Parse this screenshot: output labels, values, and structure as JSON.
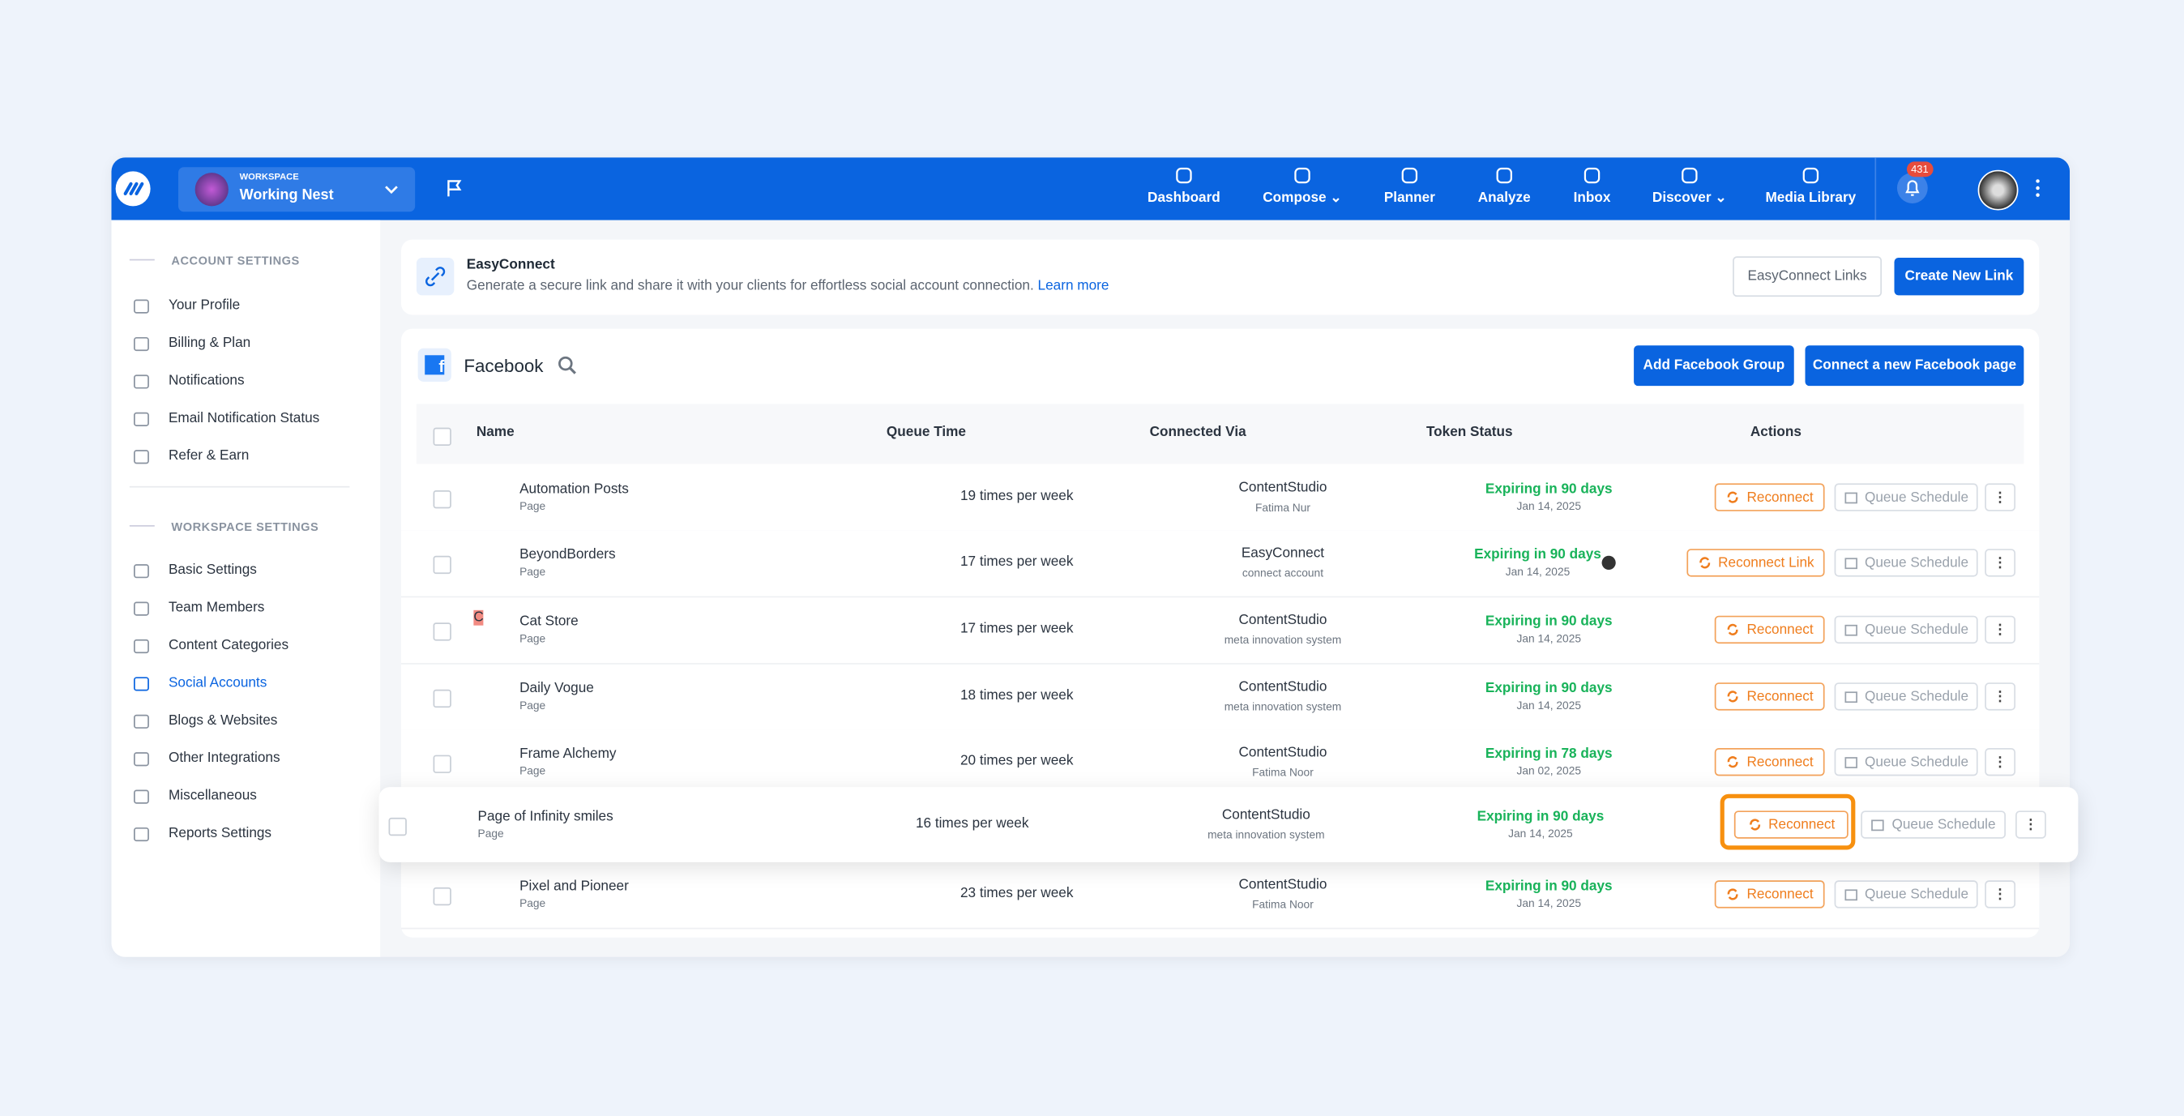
{
  "topbar": {
    "workspace_label": "WORKSPACE",
    "workspace_name": "Working Nest",
    "nav": [
      "Dashboard",
      "Compose",
      "Planner",
      "Analyze",
      "Inbox",
      "Discover",
      "Media Library"
    ],
    "notification_count": "431"
  },
  "sidebar": {
    "account_heading": "ACCOUNT SETTINGS",
    "account_items": [
      "Your Profile",
      "Billing & Plan",
      "Notifications",
      "Email Notification Status",
      "Refer & Earn"
    ],
    "workspace_heading": "WORKSPACE SETTINGS",
    "workspace_items": [
      "Basic Settings",
      "Team Members",
      "Content Categories",
      "Social Accounts",
      "Blogs & Websites",
      "Other Integrations",
      "Miscellaneous",
      "Reports Settings"
    ]
  },
  "easyconnect": {
    "title": "EasyConnect",
    "description": "Generate a secure link and share it with your clients for effortless social account connection.",
    "link": "Learn more",
    "buttons": [
      "EasyConnect Links",
      "Create New Link"
    ]
  },
  "facebook": {
    "title": "Facebook",
    "buttons": [
      "Add Facebook Group",
      "Connect a new Facebook page"
    ],
    "columns": [
      "Name",
      "Queue Time",
      "Connected Via",
      "Token Status",
      "Actions"
    ],
    "rows": [
      {
        "initial": null,
        "name": "Automation Posts",
        "type": "Page",
        "queue": "19 times per week",
        "via": "ContentStudio",
        "via_detail": "Fatima Nur",
        "status": "Expiring in 90 days",
        "date": "Jan 14, 2025",
        "actions": [
          "Reconnect",
          "Queue Schedule"
        ]
      },
      {
        "initial": null,
        "name": "BeyondBorders",
        "type": "Page",
        "queue": "17 times per week",
        "via": "EasyConnect",
        "via_detail": "connect account",
        "status": "Expiring in 90 days",
        "date": "Jan 14, 2025",
        "actions": [
          "Reconnect Link",
          "Queue Schedule"
        ]
      },
      {
        "initial": "C",
        "name": "Cat Store",
        "type": "Page",
        "queue": "17 times per week",
        "via": "ContentStudio",
        "via_detail": "meta innovation system",
        "status": "Expiring in 90 days",
        "date": "Jan 14, 2025",
        "actions": [
          "Reconnect",
          "Queue Schedule"
        ]
      },
      {
        "initial": null,
        "name": "Daily Vogue",
        "type": "Page",
        "queue": "18 times per week",
        "via": "ContentStudio",
        "via_detail": "meta innovation system",
        "status": "Expiring in 90 days",
        "date": "Jan 14, 2025",
        "actions": [
          "Reconnect",
          "Queue Schedule"
        ]
      },
      {
        "initial": null,
        "name": "Frame Alchemy",
        "type": "Page",
        "queue": "20 times per week",
        "via": "ContentStudio",
        "via_detail": "Fatima Noor",
        "status": "Expiring in 78 days",
        "date": "Jan 02, 2025",
        "actions": [
          "Reconnect",
          "Queue Schedule"
        ]
      },
      {
        "initial": null,
        "name": "Page of Infinity smiles",
        "type": "Page",
        "queue": "16 times per week",
        "via": "ContentStudio",
        "via_detail": "meta innovation system",
        "status": "Expiring in 90 days",
        "date": "Jan 14, 2025",
        "actions": [
          "Reconnect",
          "Queue Schedule"
        ]
      },
      {
        "initial": null,
        "name": "Pixel and Pioneer",
        "type": "Page",
        "queue": "23 times per week",
        "via": "ContentStudio",
        "via_detail": "Fatima Noor",
        "status": "Expiring in 90 days",
        "date": "Jan 14, 2025",
        "actions": [
          "Reconnect",
          "Queue Schedule"
        ]
      }
    ]
  }
}
